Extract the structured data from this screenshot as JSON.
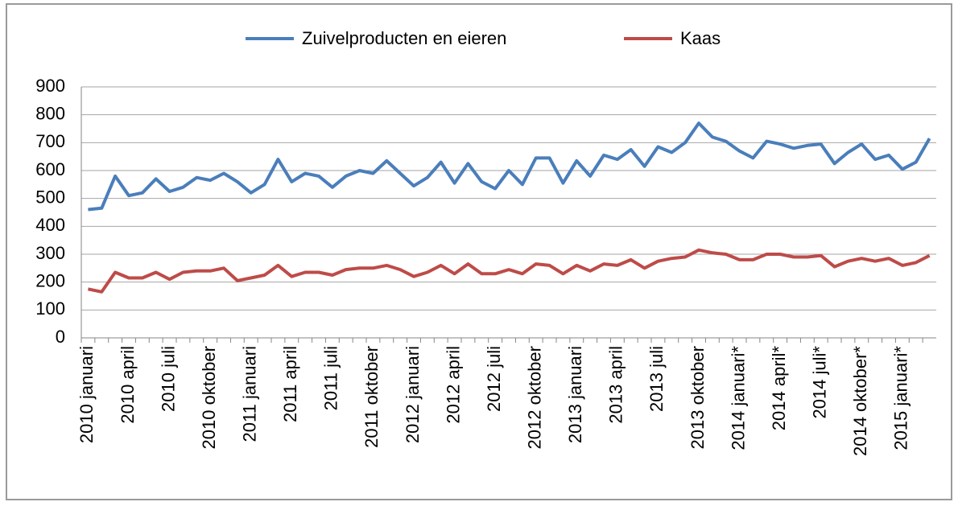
{
  "chart_data": {
    "type": "line",
    "categories": [
      "2010 januari",
      null,
      null,
      "2010 april",
      null,
      null,
      "2010 juli",
      null,
      null,
      "2010 oktober",
      null,
      null,
      "2011 januari",
      null,
      null,
      "2011 april",
      null,
      null,
      "2011 juli",
      null,
      null,
      "2011 oktober",
      null,
      null,
      "2012 januari",
      null,
      null,
      "2012 april",
      null,
      null,
      "2012 juli",
      null,
      null,
      "2012 oktober",
      null,
      null,
      "2013 januari",
      null,
      null,
      "2013 april",
      null,
      null,
      "2013 juli",
      null,
      null,
      "2013 oktober",
      null,
      null,
      "2014 januari*",
      null,
      null,
      "2014 april*",
      null,
      null,
      "2014 juli*",
      null,
      null,
      "2014 oktober*",
      null,
      null,
      "2015 januari*",
      null,
      null
    ],
    "series": [
      {
        "name": "Zuivelproducten en eieren",
        "color": "#4a7ebb",
        "values": [
          460,
          465,
          580,
          510,
          520,
          570,
          525,
          540,
          575,
          565,
          590,
          560,
          520,
          550,
          640,
          560,
          590,
          580,
          540,
          580,
          600,
          590,
          635,
          590,
          545,
          575,
          630,
          555,
          625,
          560,
          535,
          600,
          550,
          645,
          645,
          555,
          635,
          580,
          655,
          640,
          675,
          615,
          685,
          665,
          700,
          770,
          720,
          705,
          670,
          645,
          705,
          695,
          680,
          690,
          695,
          625,
          665,
          695,
          640,
          655,
          605,
          630,
          715
        ]
      },
      {
        "name": "Kaas",
        "color": "#be4b48",
        "values": [
          175,
          165,
          235,
          215,
          215,
          235,
          210,
          235,
          240,
          240,
          250,
          205,
          215,
          225,
          260,
          220,
          235,
          235,
          225,
          245,
          250,
          250,
          260,
          245,
          220,
          235,
          260,
          230,
          265,
          230,
          230,
          245,
          230,
          265,
          260,
          230,
          260,
          240,
          265,
          260,
          280,
          250,
          275,
          285,
          290,
          315,
          305,
          300,
          280,
          280,
          300,
          300,
          290,
          290,
          295,
          255,
          275,
          285,
          275,
          285,
          260,
          270,
          295
        ]
      }
    ],
    "ylim": [
      0,
      900
    ],
    "yticks": [
      0,
      100,
      200,
      300,
      400,
      500,
      600,
      700,
      800,
      900
    ],
    "grid": true,
    "legend": "top"
  }
}
